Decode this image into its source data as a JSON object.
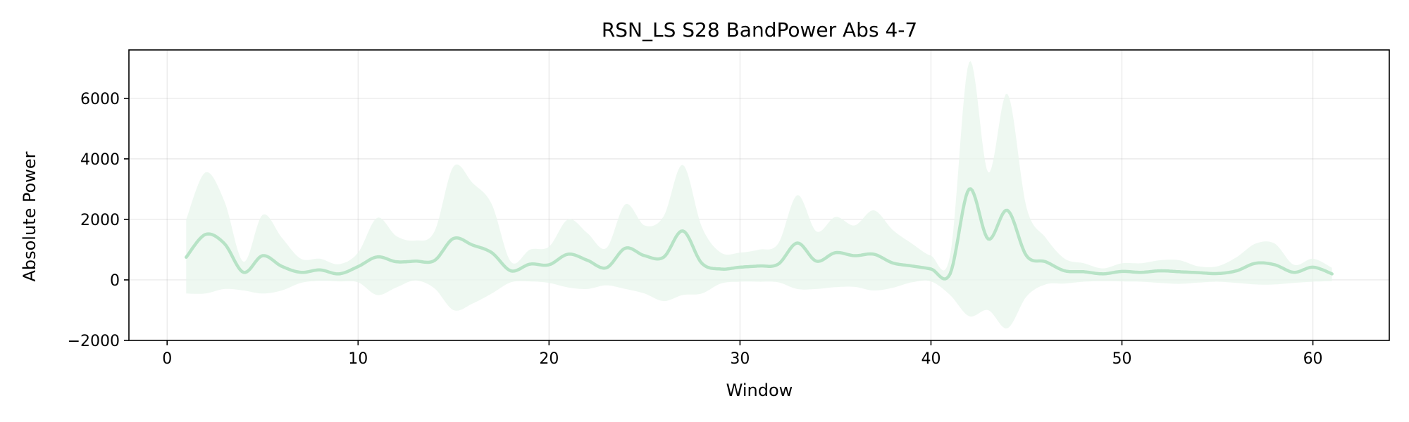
{
  "chart_data": {
    "type": "line",
    "title": "RSN_LS S28 BandPower Abs 4-7",
    "xlabel": "Window",
    "ylabel": "Absolute Power",
    "xlim": [
      -2,
      64
    ],
    "ylim": [
      -2000,
      7600
    ],
    "xticks": [
      0,
      10,
      20,
      30,
      40,
      50,
      60
    ],
    "yticks": [
      -2000,
      0,
      2000,
      4000,
      6000
    ],
    "ytick_labels": [
      "−2000",
      "0",
      "2000",
      "4000",
      "6000"
    ],
    "grid": true,
    "legend": "none",
    "colors": {
      "line": "#b7e3c6",
      "band": "#e8f5ec"
    },
    "series": [
      {
        "x": [
          1,
          2,
          3,
          4,
          5,
          6,
          7,
          8,
          9,
          10,
          11,
          12,
          13,
          14,
          15,
          16,
          17,
          18,
          19,
          20,
          21,
          22,
          23,
          24,
          25,
          26,
          27,
          28,
          29,
          30,
          31,
          32,
          33,
          34,
          35,
          36,
          37,
          38,
          39,
          40,
          41,
          42,
          43,
          44,
          45,
          46,
          47,
          48,
          49,
          50,
          51,
          52,
          53,
          54,
          55,
          56,
          57,
          58,
          59,
          60,
          61
        ],
        "mean": [
          750,
          1500,
          1200,
          250,
          800,
          450,
          250,
          330,
          200,
          440,
          760,
          600,
          620,
          640,
          1370,
          1150,
          900,
          300,
          520,
          500,
          850,
          650,
          400,
          1050,
          800,
          750,
          1620,
          550,
          360,
          420,
          460,
          520,
          1220,
          620,
          900,
          800,
          850,
          560,
          460,
          360,
          200,
          3000,
          1350,
          2300,
          800,
          600,
          300,
          270,
          200,
          280,
          250,
          300,
          270,
          240,
          210,
          300,
          550,
          500,
          250,
          420,
          200
        ],
        "upper": [
          2000,
          3550,
          2600,
          600,
          2150,
          1400,
          700,
          700,
          520,
          900,
          2050,
          1450,
          1300,
          1600,
          3750,
          3200,
          2500,
          600,
          1000,
          1100,
          2000,
          1550,
          1050,
          2500,
          1800,
          2100,
          3800,
          1750,
          900,
          900,
          1000,
          1200,
          2800,
          1600,
          2080,
          1800,
          2300,
          1650,
          1200,
          800,
          800,
          7200,
          3550,
          6150,
          2400,
          1400,
          700,
          550,
          380,
          550,
          550,
          650,
          650,
          450,
          450,
          750,
          1200,
          1200,
          500,
          700,
          400
        ],
        "lower": [
          -450,
          -450,
          -300,
          -350,
          -450,
          -350,
          -100,
          -30,
          -50,
          -80,
          -500,
          -250,
          -20,
          -280,
          -1000,
          -780,
          -450,
          -80,
          -50,
          -100,
          -250,
          -300,
          -180,
          -300,
          -450,
          -700,
          -500,
          -450,
          -120,
          -60,
          -60,
          -80,
          -300,
          -300,
          -240,
          -230,
          -350,
          -260,
          -80,
          -50,
          -500,
          -1200,
          -1000,
          -1600,
          -550,
          -150,
          -120,
          -60,
          -40,
          -50,
          -60,
          -100,
          -130,
          -90,
          -60,
          -100,
          -150,
          -150,
          -100,
          -60,
          -40
        ]
      }
    ]
  }
}
